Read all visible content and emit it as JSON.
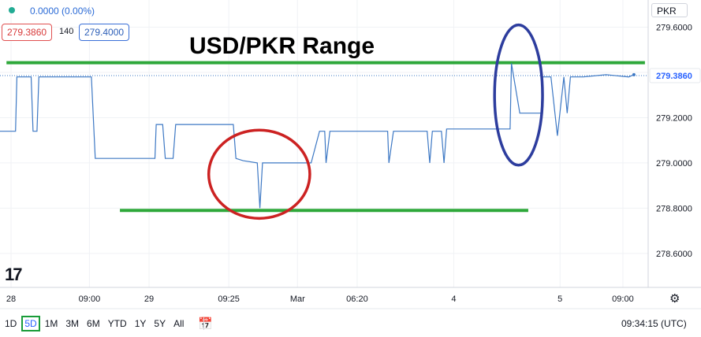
{
  "header": {
    "change_text": "0.0000 (0.00%)",
    "bid": "279.3860",
    "spread": "140",
    "ask": "279.4000",
    "currency": "PKR"
  },
  "colors": {
    "line": "#3d78c4",
    "support_resistance": "#2ea83a",
    "red_circle": "#cc2222",
    "blue_circle": "#2d3d9e",
    "last_price_bg": "#2962ff"
  },
  "chart_data": {
    "type": "line",
    "title": "USD/PKR Range",
    "xlabel": "",
    "ylabel": "",
    "ylim": [
      278.45,
      279.72
    ],
    "y_ticks": [
      "279.6000",
      "279.4000",
      "279.2000",
      "279.0000",
      "278.8000",
      "278.6000"
    ],
    "y_tick_values": [
      279.6,
      279.4,
      279.2,
      279.0,
      278.8,
      278.6
    ],
    "x_tick_labels": [
      "28",
      "09:00",
      "29",
      "09:25",
      "Mar",
      "06:20",
      "4",
      "5",
      "09:00"
    ],
    "x_tick_positions": [
      0.2,
      12.3,
      21.5,
      33.8,
      44.4,
      53.6,
      68.5,
      84.9,
      94.6
    ],
    "x_range": [
      -1.5,
      98.5
    ],
    "last_price_label": "279.3860",
    "last_price": 279.386,
    "series": [
      {
        "points": [
          [
            -1.5,
            279.14
          ],
          [
            0.9,
            279.14
          ],
          [
            1.1,
            279.38
          ],
          [
            3.3,
            279.38
          ],
          [
            3.6,
            279.14
          ],
          [
            4.2,
            279.14
          ],
          [
            4.5,
            279.38
          ],
          [
            6.7,
            279.38
          ],
          [
            7.2,
            279.38
          ],
          [
            9.9,
            279.38
          ],
          [
            12.6,
            279.38
          ],
          [
            13.2,
            279.02
          ],
          [
            21.5,
            279.02
          ],
          [
            22.4,
            279.02
          ],
          [
            22.6,
            279.17
          ],
          [
            23.6,
            279.17
          ],
          [
            24.0,
            279.02
          ],
          [
            25.2,
            279.02
          ],
          [
            25.6,
            279.17
          ],
          [
            33.4,
            279.17
          ],
          [
            34.5,
            279.17
          ],
          [
            34.9,
            279.02
          ],
          [
            36.0,
            279.01
          ],
          [
            38.2,
            279.0
          ],
          [
            38.6,
            278.8
          ],
          [
            39.0,
            279.0
          ],
          [
            46.5,
            279.0
          ],
          [
            47.8,
            279.14
          ],
          [
            48.6,
            279.14
          ],
          [
            48.8,
            279.0
          ],
          [
            49.4,
            279.14
          ],
          [
            57.1,
            279.14
          ],
          [
            58.3,
            279.14
          ],
          [
            58.5,
            279.0
          ],
          [
            59.2,
            279.14
          ],
          [
            64.4,
            279.14
          ],
          [
            64.8,
            279.0
          ],
          [
            65.2,
            279.14
          ],
          [
            66.6,
            279.14
          ],
          [
            67.0,
            279.0
          ],
          [
            67.4,
            279.15
          ],
          [
            77.2,
            279.15
          ],
          [
            77.4,
            279.44
          ],
          [
            78.7,
            279.22
          ],
          [
            82.0,
            279.22
          ],
          [
            82.2,
            279.38
          ],
          [
            83.5,
            279.38
          ],
          [
            84.5,
            279.12
          ],
          [
            85.5,
            279.38
          ],
          [
            86.0,
            279.22
          ],
          [
            86.5,
            279.38
          ],
          [
            88.5,
            279.38
          ],
          [
            92.0,
            279.39
          ],
          [
            95.5,
            279.38
          ],
          [
            96.3,
            279.39
          ]
        ]
      }
    ],
    "resistance_line": {
      "x": [
        -0.5,
        98.0
      ],
      "y": 279.443
    },
    "support_line": {
      "x": [
        17.0,
        80.0
      ],
      "y": 278.79
    },
    "annotations": [
      {
        "type": "ellipse",
        "color": "red",
        "center": [
          38.5,
          278.95
        ],
        "rx": 7.8,
        "ry": 0.195
      },
      {
        "type": "ellipse",
        "color": "blue",
        "center": [
          78.5,
          279.3
        ],
        "rx": 3.7,
        "ry": 0.31
      }
    ]
  },
  "toolbar": {
    "ranges": [
      "1D",
      "5D",
      "1M",
      "3M",
      "6M",
      "YTD",
      "1Y",
      "5Y",
      "All"
    ],
    "active_range": "5D",
    "clock": "09:34:15 (UTC)"
  },
  "logo": "17"
}
